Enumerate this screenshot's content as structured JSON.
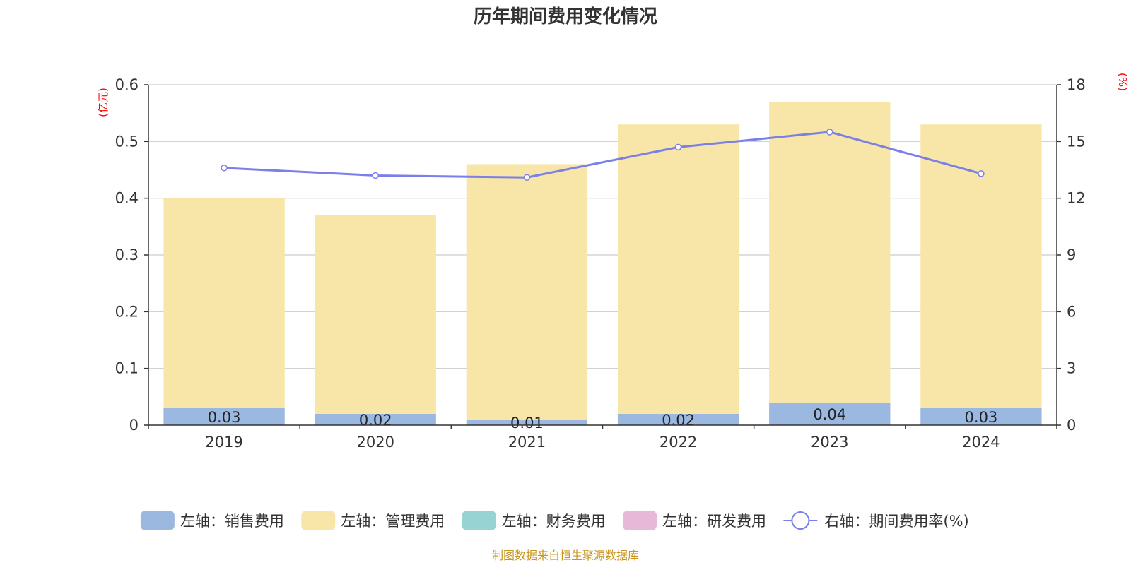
{
  "chart_data": {
    "type": "bar",
    "title": "历年期间费用变化情况",
    "categories": [
      "2019",
      "2020",
      "2021",
      "2022",
      "2023",
      "2024"
    ],
    "left_axis": {
      "unit": "(亿元)",
      "ylim": [
        0,
        0.6
      ],
      "ticks": [
        "0",
        "0.1",
        "0.2",
        "0.3",
        "0.4",
        "0.5",
        "0.6"
      ]
    },
    "right_axis": {
      "unit": "(%)",
      "ylim": [
        0,
        18
      ],
      "ticks": [
        "0",
        "3",
        "6",
        "9",
        "12",
        "15",
        "18"
      ]
    },
    "series": [
      {
        "name": "左轴：销售费用",
        "type": "bar",
        "axis": "left",
        "color": "#9bb8e0",
        "values": [
          0.03,
          0.02,
          0.01,
          0.02,
          0.04,
          0.03
        ],
        "labels": [
          "0.03",
          "0.02",
          "0.01",
          "0.02",
          "0.04",
          "0.03"
        ]
      },
      {
        "name": "左轴：管理费用",
        "type": "bar",
        "axis": "left",
        "color": "#f7e6a8",
        "values": [
          0.37,
          0.35,
          0.45,
          0.51,
          0.53,
          0.5
        ]
      },
      {
        "name": "左轴：财务费用",
        "type": "bar",
        "axis": "left",
        "color": "#96d3d2",
        "values": [
          0,
          0,
          0,
          0,
          0,
          0
        ]
      },
      {
        "name": "左轴：研发费用",
        "type": "bar",
        "axis": "left",
        "color": "#e8b8d8",
        "values": [
          0,
          0,
          0,
          0,
          0,
          0
        ]
      },
      {
        "name": "右轴：期间费用率(%)",
        "type": "line",
        "axis": "right",
        "color": "#7b7fe8",
        "values": [
          13.6,
          13.2,
          13.1,
          14.7,
          15.5,
          13.3
        ]
      }
    ],
    "grid": true,
    "legend_position": "bottom"
  },
  "source_note": "制图数据来自恒生聚源数据库"
}
